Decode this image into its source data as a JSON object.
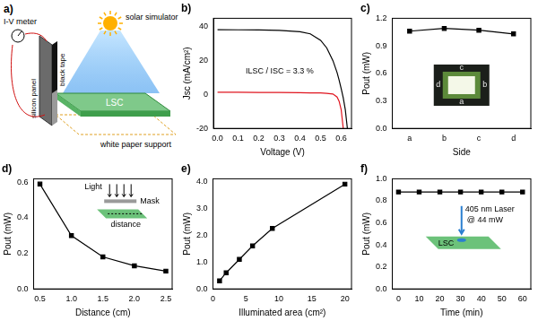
{
  "chart_data": [
    {
      "title": "b)",
      "type": "line",
      "x_label": "Voltage (V)",
      "y_label": "Jsc (mA/cm²)",
      "x": [
        0,
        0.1,
        0.2,
        0.3,
        0.4,
        0.45,
        0.5,
        0.53,
        0.56,
        0.58,
        0.59,
        0.6,
        0.61,
        0.62,
        0.63
      ],
      "series": [
        {
          "color": "#000000",
          "values": [
            38.3,
            38.2,
            38.1,
            37.9,
            37.1,
            35.8,
            32.0,
            27.5,
            20.0,
            13.0,
            8.5,
            3.5,
            -2.0,
            -9.0,
            -20.0
          ]
        },
        {
          "color": "#e0141e",
          "values": [
            1.3,
            1.3,
            1.25,
            1.2,
            1.1,
            1.0,
            0.9,
            0.7,
            0.3,
            -1.5,
            -4.0,
            -9.0,
            -20.0,
            null,
            null
          ]
        }
      ],
      "annotations": [
        {
          "text": "ILSC / ISC = 3.3 %"
        }
      ],
      "xlim": [
        -0.02,
        0.65
      ],
      "xticks": [
        {
          "value": 0,
          "label": "0.0"
        },
        0.1,
        0.2,
        0.3,
        0.4,
        0.5,
        0.6
      ],
      "ylim": [
        -20,
        45
      ],
      "yticks": [
        -20,
        0,
        20,
        40
      ],
      "grid": false
    },
    {
      "title": "c)",
      "type": "line",
      "x_label": "Side",
      "y_label": "Pout (mW)",
      "categories": [
        "a",
        "b",
        "c",
        "d"
      ],
      "values": [
        1.06,
        1.09,
        1.07,
        1.03
      ],
      "color": "#000000",
      "marker": "square",
      "annotations": [
        {
          "text": "a"
        },
        {
          "text": "b"
        },
        {
          "text": "c"
        },
        {
          "text": "d"
        }
      ],
      "ylim": [
        0,
        1.2
      ],
      "yticks": [
        {
          "value": 0,
          "label": "0.0"
        },
        0.3,
        0.6,
        0.9,
        1.2
      ],
      "grid": false
    },
    {
      "title": "d)",
      "type": "line",
      "x_label": "Distance (cm)",
      "y_label": "Pout (mW)",
      "x": [
        0.5,
        1.0,
        1.5,
        2.0,
        2.5
      ],
      "values": [
        0.59,
        0.3,
        0.18,
        0.13,
        0.1
      ],
      "color": "#000000",
      "marker": "square",
      "annotations": [
        {
          "text": "Light"
        },
        {
          "text": "Mask"
        },
        {
          "text": "distance"
        }
      ],
      "xlim": [
        0.4,
        2.6
      ],
      "xticks": [
        0.5,
        {
          "value": 1,
          "label": "1.0"
        },
        1.5,
        {
          "value": 2,
          "label": "2.0"
        },
        2.5
      ],
      "ylim": [
        0,
        0.62
      ],
      "yticks": [
        {
          "value": 0,
          "label": "0.0"
        },
        0.2,
        0.4,
        0.6
      ],
      "grid": false
    },
    {
      "title": "e)",
      "type": "line",
      "x_label": "Illuminated area (cm²)",
      "y_label": "Pout (mW)",
      "x": [
        1,
        2,
        4,
        6,
        9,
        20
      ],
      "values": [
        0.3,
        0.6,
        1.1,
        1.6,
        2.25,
        3.9
      ],
      "color": "#000000",
      "marker": "square",
      "xlim": [
        0,
        21
      ],
      "xticks": [
        0,
        5,
        10,
        15,
        20
      ],
      "ylim": [
        0,
        4.1
      ],
      "yticks": [
        {
          "value": 0,
          "label": "0.0"
        },
        {
          "value": 1,
          "label": "1.0"
        },
        {
          "value": 2,
          "label": "2.0"
        },
        {
          "value": 3,
          "label": "3.0"
        },
        {
          "value": 4,
          "label": "4.0"
        }
      ],
      "grid": false
    },
    {
      "title": "f)",
      "type": "line",
      "x_label": "Time (min)",
      "y_label": "Pout (mW)",
      "x": [
        0,
        10,
        20,
        30,
        40,
        50,
        60
      ],
      "values": [
        0.88,
        0.88,
        0.88,
        0.88,
        0.88,
        0.88,
        0.88
      ],
      "color": "#000000",
      "marker": "square",
      "annotations": [
        {
          "text": "405 nm Laser"
        },
        {
          "text": "@ 44 mW"
        },
        {
          "text": "LSC"
        }
      ],
      "xlim": [
        -3,
        64
      ],
      "xticks": [
        0,
        10,
        20,
        30,
        40,
        50,
        60
      ],
      "ylim": [
        0,
        1.0
      ],
      "yticks": [
        {
          "value": 0,
          "label": "0.0"
        },
        0.2,
        0.4,
        0.6,
        0.8,
        {
          "value": 1,
          "label": "1.0"
        }
      ],
      "grid": false
    }
  ],
  "diagram": {
    "title": "a)",
    "labels": {
      "meter": "I-V meter",
      "sun": "solar simulator",
      "panel": "silicon panel",
      "tape": "black tape",
      "lsc": "LSC",
      "support": "white paper support"
    }
  }
}
